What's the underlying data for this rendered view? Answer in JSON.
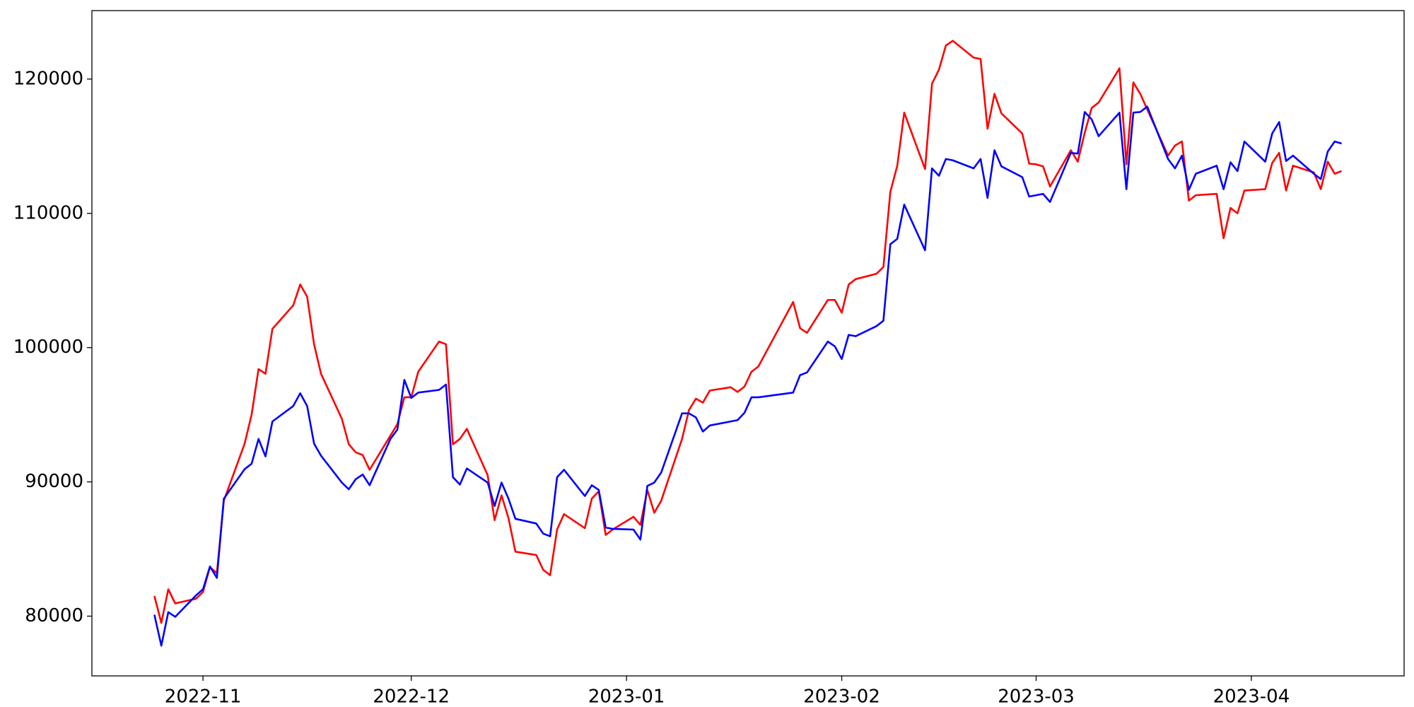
{
  "chart_data": {
    "type": "line",
    "x": [
      "2022-10-25",
      "2022-10-26",
      "2022-10-27",
      "2022-10-28",
      "2022-10-31",
      "2022-11-01",
      "2022-11-02",
      "2022-11-03",
      "2022-11-04",
      "2022-11-07",
      "2022-11-08",
      "2022-11-09",
      "2022-11-10",
      "2022-11-11",
      "2022-11-14",
      "2022-11-15",
      "2022-11-16",
      "2022-11-17",
      "2022-11-18",
      "2022-11-21",
      "2022-11-22",
      "2022-11-23",
      "2022-11-24",
      "2022-11-25",
      "2022-11-28",
      "2022-11-29",
      "2022-11-30",
      "2022-12-01",
      "2022-12-02",
      "2022-12-05",
      "2022-12-06",
      "2022-12-07",
      "2022-12-08",
      "2022-12-09",
      "2022-12-12",
      "2022-12-13",
      "2022-12-14",
      "2022-12-15",
      "2022-12-16",
      "2022-12-19",
      "2022-12-20",
      "2022-12-21",
      "2022-12-22",
      "2022-12-23",
      "2022-12-26",
      "2022-12-27",
      "2022-12-28",
      "2022-12-29",
      "2022-12-30",
      "2023-01-02",
      "2023-01-03",
      "2023-01-04",
      "2023-01-05",
      "2023-01-06",
      "2023-01-09",
      "2023-01-10",
      "2023-01-11",
      "2023-01-12",
      "2023-01-13",
      "2023-01-16",
      "2023-01-17",
      "2023-01-18",
      "2023-01-19",
      "2023-01-20",
      "2023-01-25",
      "2023-01-26",
      "2023-01-27",
      "2023-01-30",
      "2023-01-31",
      "2023-02-01",
      "2023-02-02",
      "2023-02-03",
      "2023-02-06",
      "2023-02-07",
      "2023-02-08",
      "2023-02-09",
      "2023-02-10",
      "2023-02-13",
      "2023-02-14",
      "2023-02-15",
      "2023-02-16",
      "2023-02-17",
      "2023-02-20",
      "2023-02-21",
      "2023-02-22",
      "2023-02-23",
      "2023-02-24",
      "2023-02-27",
      "2023-02-28",
      "2023-03-01",
      "2023-03-02",
      "2023-03-03",
      "2023-03-06",
      "2023-03-07",
      "2023-03-08",
      "2023-03-09",
      "2023-03-10",
      "2023-03-13",
      "2023-03-14",
      "2023-03-15",
      "2023-03-16",
      "2023-03-17",
      "2023-03-20",
      "2023-03-21",
      "2023-03-22",
      "2023-03-23",
      "2023-03-24",
      "2023-03-27",
      "2023-03-28",
      "2023-03-29",
      "2023-03-30",
      "2023-03-31",
      "2023-04-03",
      "2023-04-04",
      "2023-04-05",
      "2023-04-06",
      "2023-04-07",
      "2023-04-10",
      "2023-04-11",
      "2023-04-12",
      "2023-04-13",
      "2023-04-14"
    ],
    "series": [
      {
        "color": "#ff0000",
        "values": [
          81500,
          79500,
          82000,
          80950,
          81300,
          81800,
          83650,
          83200,
          88600,
          92850,
          95000,
          98400,
          98050,
          101400,
          103150,
          104700,
          103800,
          100250,
          98050,
          94700,
          92800,
          92200,
          92000,
          90900,
          93450,
          94300,
          96300,
          96300,
          98200,
          100450,
          100250,
          92800,
          93200,
          93950,
          90500,
          87150,
          89000,
          87300,
          84800,
          84550,
          83450,
          83050,
          86450,
          87600,
          86550,
          88750,
          89300,
          86050,
          86450,
          87400,
          86800,
          89400,
          87700,
          88600,
          93200,
          95350,
          96200,
          95900,
          96800,
          97050,
          96700,
          97100,
          98200,
          98600,
          103400,
          101450,
          101100,
          103550,
          103550,
          102600,
          104700,
          105100,
          105500,
          106000,
          111600,
          113550,
          117500,
          113300,
          119650,
          120700,
          122500,
          122850,
          121600,
          121500,
          116300,
          118900,
          117450,
          115950,
          113700,
          113650,
          113500,
          112000,
          114700,
          113850,
          116000,
          117850,
          118250,
          120800,
          113650,
          119750,
          118900,
          117750,
          114300,
          115050,
          115350,
          110950,
          111350,
          111450,
          108150,
          110400,
          110000,
          111700,
          111800,
          113750,
          114500,
          111700,
          113550,
          113050,
          111800,
          113850,
          112950,
          113150
        ]
      },
      {
        "color": "#0000ff",
        "values": [
          80100,
          77800,
          80300,
          79950,
          81550,
          82000,
          83700,
          82850,
          88750,
          90950,
          91350,
          93200,
          91900,
          94500,
          95650,
          96600,
          95650,
          92850,
          91950,
          89950,
          89450,
          90200,
          90550,
          89750,
          93200,
          93900,
          97600,
          96250,
          96650,
          96850,
          97250,
          90350,
          89800,
          91000,
          89950,
          88200,
          89950,
          88750,
          87250,
          86900,
          86150,
          85950,
          90350,
          90900,
          88950,
          89750,
          89400,
          86600,
          86500,
          86450,
          85700,
          89700,
          89950,
          90700,
          95100,
          95100,
          94800,
          93750,
          94200,
          94500,
          94600,
          95150,
          96300,
          96300,
          96650,
          97950,
          98150,
          100450,
          100100,
          99150,
          100950,
          100850,
          101600,
          102000,
          107700,
          108100,
          110650,
          107250,
          113350,
          112800,
          114050,
          113950,
          113350,
          114050,
          111150,
          114700,
          113500,
          112700,
          111250,
          111350,
          111450,
          110850,
          114500,
          114450,
          117550,
          117000,
          115750,
          117500,
          111800,
          117500,
          117550,
          117950,
          114050,
          113350,
          114300,
          111750,
          112950,
          113550,
          111800,
          113800,
          113150,
          115350,
          113850,
          115950,
          116800,
          113900,
          114300,
          112950,
          112550,
          114600,
          115350,
          115200
        ]
      }
    ],
    "xlim": [
      "2022-10-16",
      "2023-04-23"
    ],
    "xticks": [
      {
        "value": "2022-11-01",
        "label": "2022-11"
      },
      {
        "value": "2022-12-01",
        "label": "2022-12"
      },
      {
        "value": "2023-01-01",
        "label": "2023-01"
      },
      {
        "value": "2023-02-01",
        "label": "2023-02"
      },
      {
        "value": "2023-03-01",
        "label": "2023-03"
      },
      {
        "value": "2023-04-01",
        "label": "2023-04"
      }
    ],
    "ylim": [
      75550,
      125100
    ],
    "yticks": [
      80000,
      90000,
      100000,
      110000,
      120000
    ],
    "grid": false
  }
}
